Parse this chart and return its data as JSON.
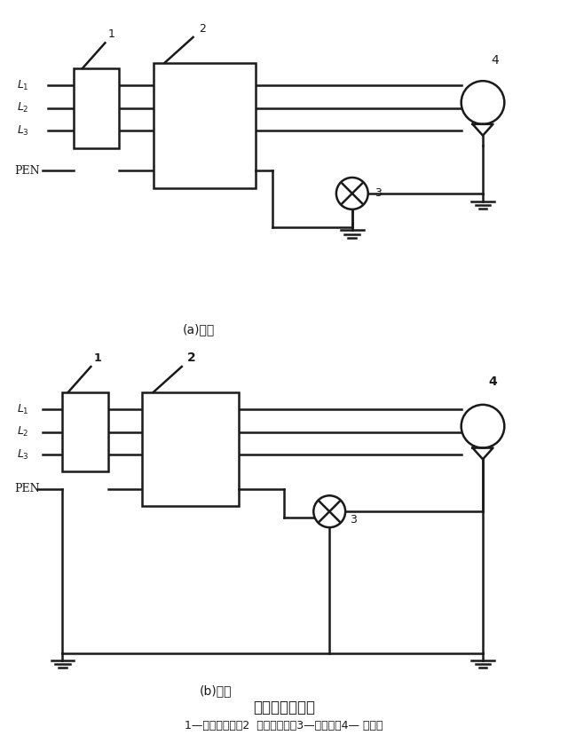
{
  "title": "重复接地的接法",
  "subtitle": "1—低压断路器；2  漏电保护器；3—信号灯；4— 电动机",
  "label_a": "(a)错误",
  "label_b": "(b)正确",
  "bg_color": "#ffffff",
  "line_color": "#1a1a1a",
  "lw": 1.8,
  "lw_thin": 1.2
}
